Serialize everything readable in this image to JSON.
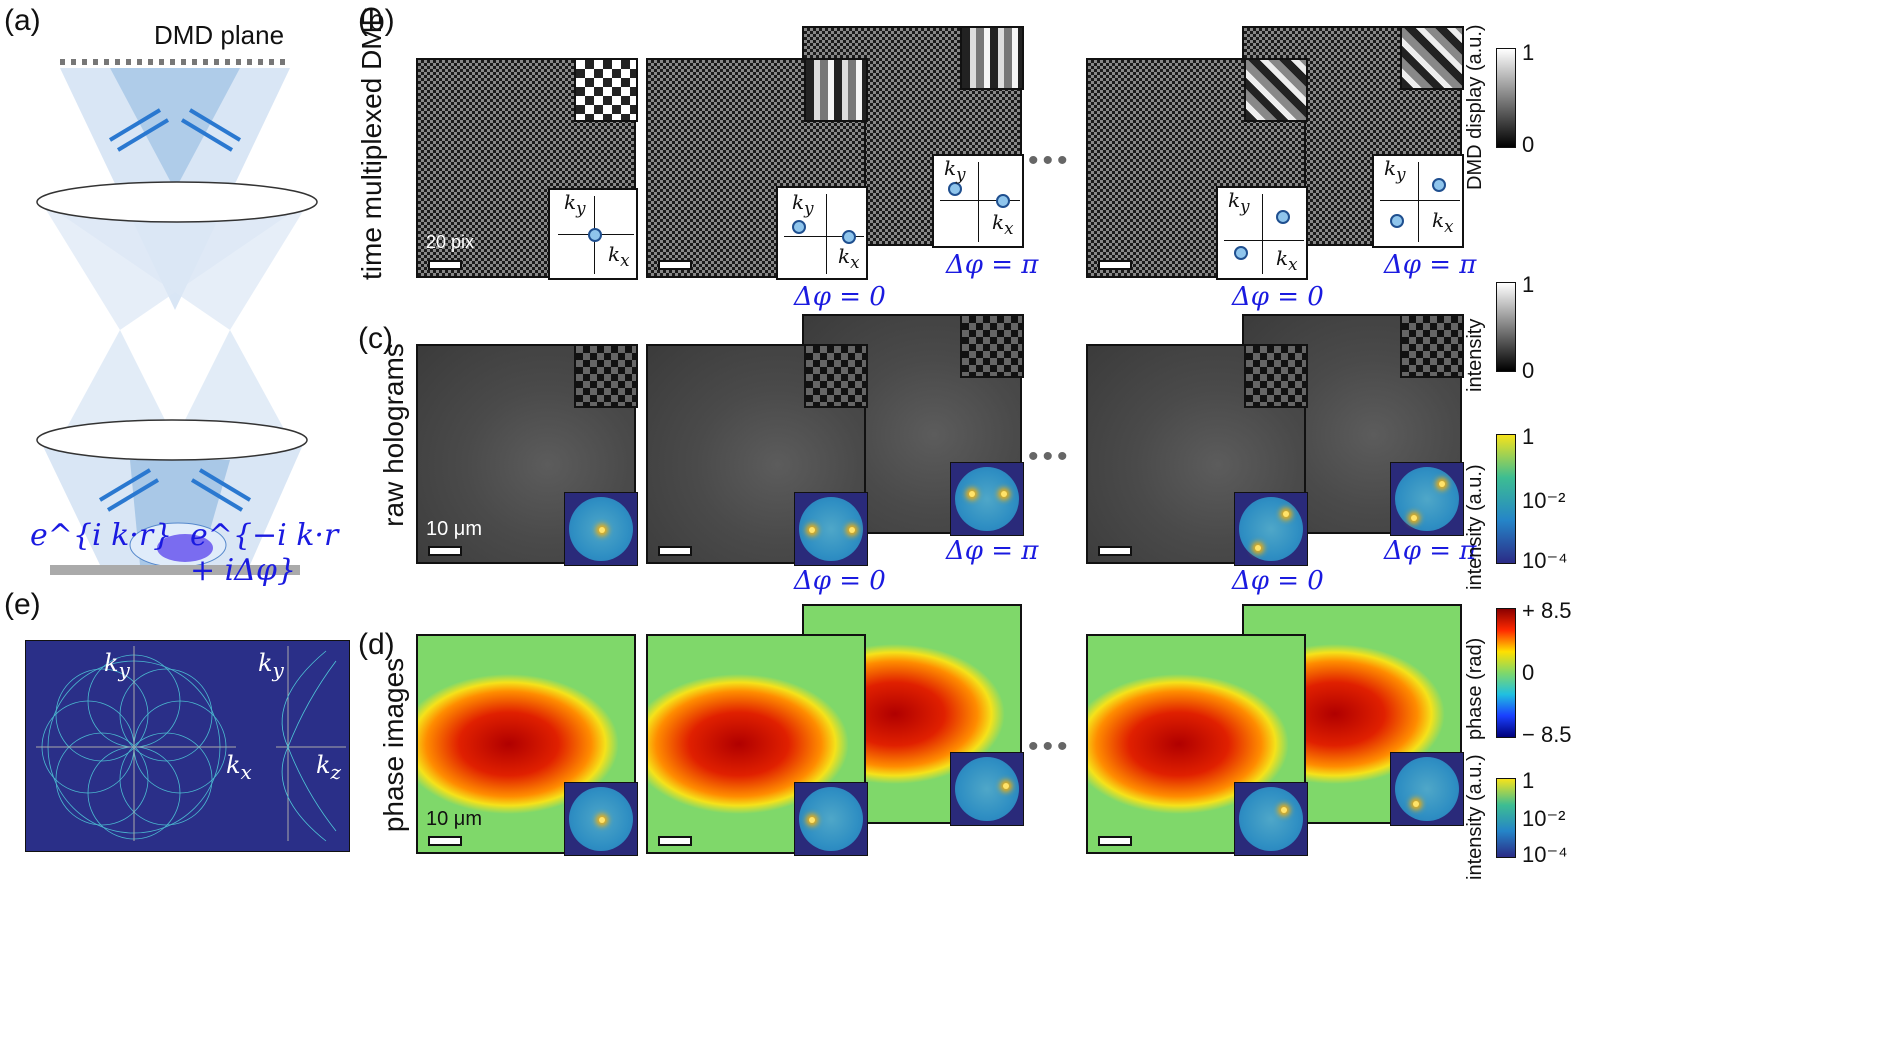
{
  "panel_labels": {
    "a": "(a)",
    "b": "(b)",
    "c": "(c)",
    "d": "(d)",
    "e": "(e)"
  },
  "a": {
    "dmd_plane": "DMD plane",
    "beam_left": "e^{i k·r}",
    "beam_right": "e^{−i k·r + iΔφ}"
  },
  "row_labels": {
    "b": "time multiplexed DMD patterns",
    "c": "raw holograms",
    "d": "phase images"
  },
  "scalebars": {
    "b": "20 pix",
    "c": "10 μm",
    "d": "10 μm"
  },
  "phase_shift": {
    "zero": "Δφ = 0",
    "pi": "Δφ = π"
  },
  "ellipsis": "•••",
  "k_axes": {
    "kx": "k",
    "x": "x",
    "ky": "k",
    "y": "y",
    "kz": "k",
    "z": "z"
  },
  "colorbars": {
    "dmd": {
      "label": "DMD display (a.u.)",
      "max": "1",
      "min": "0"
    },
    "holo_intensity": {
      "label": "intensity",
      "max": "1",
      "min": "0"
    },
    "fft_intensity": {
      "label": "intensity (a.u.)",
      "max": "1",
      "mid": "10⁻²",
      "min": "10⁻⁴"
    },
    "phase": {
      "label": "phase (rad)",
      "max": "+ 8.5",
      "mid": "0",
      "min": "− 8.5"
    },
    "fft_intensity_d": {
      "label": "intensity (a.u.)",
      "max": "1",
      "mid": "10⁻²",
      "min": "10⁻⁴"
    }
  },
  "colors": {
    "accent_blue": "#1a1ae0",
    "fft_bg": "#2a2a7a"
  }
}
